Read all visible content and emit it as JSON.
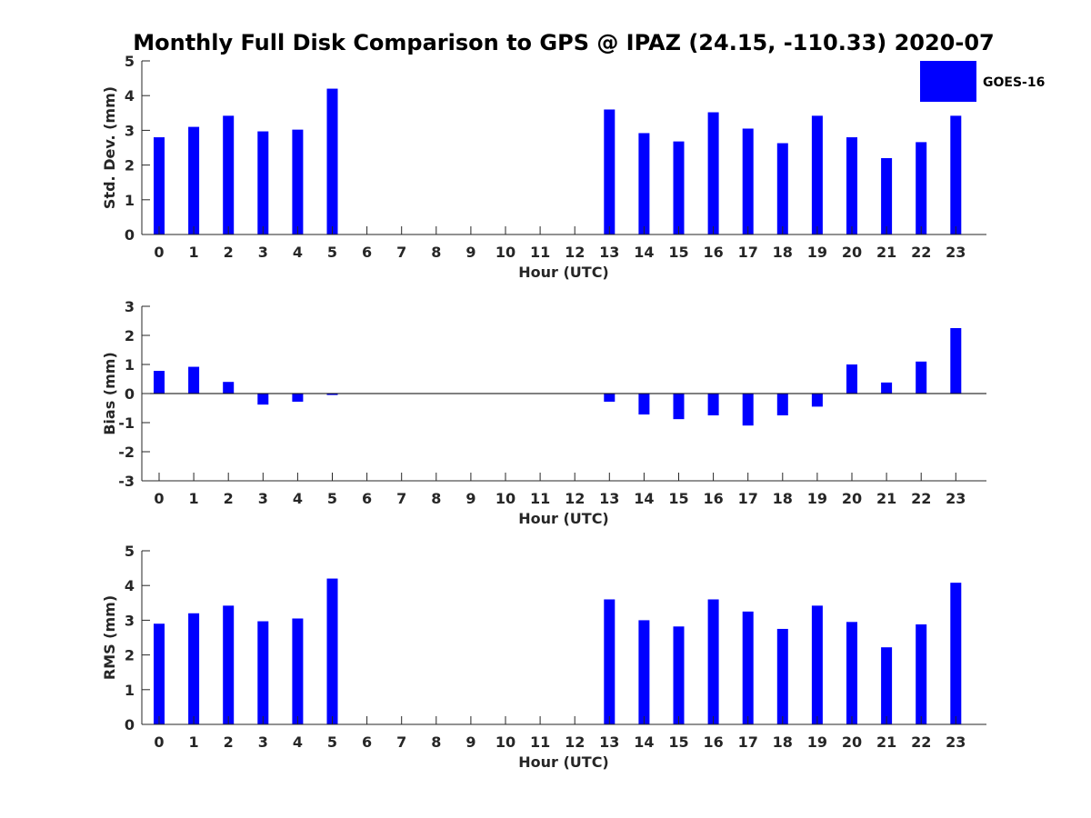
{
  "title": "Monthly Full Disk Comparison to GPS @ IPAZ (24.15, -110.33) 2020-07",
  "legend": {
    "label": "GOES-16",
    "color": "#0000ff"
  },
  "chart_data": [
    {
      "type": "bar",
      "xlabel": "Hour (UTC)",
      "ylabel": "Std. Dev. (mm)",
      "ylim": [
        0,
        5
      ],
      "yticks": [
        "0",
        "1",
        "2",
        "3",
        "4",
        "5"
      ],
      "categories": [
        "0",
        "1",
        "2",
        "3",
        "4",
        "5",
        "6",
        "7",
        "8",
        "9",
        "10",
        "11",
        "12",
        "13",
        "14",
        "15",
        "16",
        "17",
        "18",
        "19",
        "20",
        "21",
        "22",
        "23"
      ],
      "series": [
        {
          "name": "GOES-16",
          "color": "#0000ff",
          "values": [
            2.8,
            3.1,
            3.42,
            2.97,
            3.02,
            4.2,
            null,
            null,
            null,
            null,
            null,
            null,
            null,
            3.6,
            2.92,
            2.68,
            3.52,
            3.05,
            2.63,
            3.42,
            2.8,
            2.2,
            2.66,
            3.42
          ]
        }
      ]
    },
    {
      "type": "bar",
      "xlabel": "Hour (UTC)",
      "ylabel": "Bias (mm)",
      "ylim": [
        -3,
        3
      ],
      "yticks": [
        "-3",
        "-2",
        "-1",
        "0",
        "1",
        "2",
        "3"
      ],
      "zero_line": true,
      "categories": [
        "0",
        "1",
        "2",
        "3",
        "4",
        "5",
        "6",
        "7",
        "8",
        "9",
        "10",
        "11",
        "12",
        "13",
        "14",
        "15",
        "16",
        "17",
        "18",
        "19",
        "20",
        "21",
        "22",
        "23"
      ],
      "series": [
        {
          "name": "GOES-16",
          "color": "#0000ff",
          "values": [
            0.78,
            0.92,
            0.4,
            -0.38,
            -0.28,
            -0.05,
            null,
            null,
            null,
            null,
            null,
            null,
            null,
            -0.28,
            -0.72,
            -0.88,
            -0.75,
            -1.1,
            -0.75,
            -0.45,
            1.0,
            0.38,
            1.1,
            2.25
          ]
        }
      ]
    },
    {
      "type": "bar",
      "xlabel": "Hour (UTC)",
      "ylabel": "RMS (mm)",
      "ylim": [
        0,
        5
      ],
      "yticks": [
        "0",
        "1",
        "2",
        "3",
        "4",
        "5"
      ],
      "categories": [
        "0",
        "1",
        "2",
        "3",
        "4",
        "5",
        "6",
        "7",
        "8",
        "9",
        "10",
        "11",
        "12",
        "13",
        "14",
        "15",
        "16",
        "17",
        "18",
        "19",
        "20",
        "21",
        "22",
        "23"
      ],
      "series": [
        {
          "name": "GOES-16",
          "color": "#0000ff",
          "values": [
            2.9,
            3.2,
            3.42,
            2.97,
            3.05,
            4.2,
            null,
            null,
            null,
            null,
            null,
            null,
            null,
            3.6,
            3.0,
            2.82,
            3.6,
            3.25,
            2.75,
            3.42,
            2.95,
            2.22,
            2.88,
            4.08
          ]
        }
      ]
    }
  ]
}
